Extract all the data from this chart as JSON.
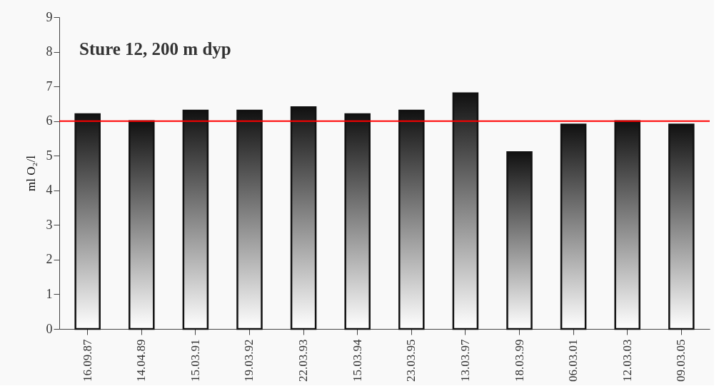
{
  "chart_data": {
    "type": "bar",
    "title": "Sture 12, 200 m dyp",
    "ylabel": "ml O₂/l",
    "categories": [
      "16.09.87",
      "14.04.89",
      "15.03.91",
      "19.03.92",
      "22.03.93",
      "15.03.94",
      "23.03.95",
      "13.03.97",
      "18.03.99",
      "06.03.01",
      "12.03.03",
      "09.03.05"
    ],
    "values": [
      6.2,
      6.0,
      6.3,
      6.3,
      6.4,
      6.2,
      6.3,
      6.8,
      5.1,
      5.9,
      6.0,
      5.9
    ],
    "color": "#111111",
    "ylim": [
      0,
      9
    ],
    "yticks": [
      0,
      1,
      2,
      3,
      4,
      5,
      6,
      7,
      8,
      9
    ],
    "grid": false,
    "ref_lines": [
      {
        "axis": "y",
        "value": 6,
        "color": "#ff0000"
      }
    ]
  }
}
